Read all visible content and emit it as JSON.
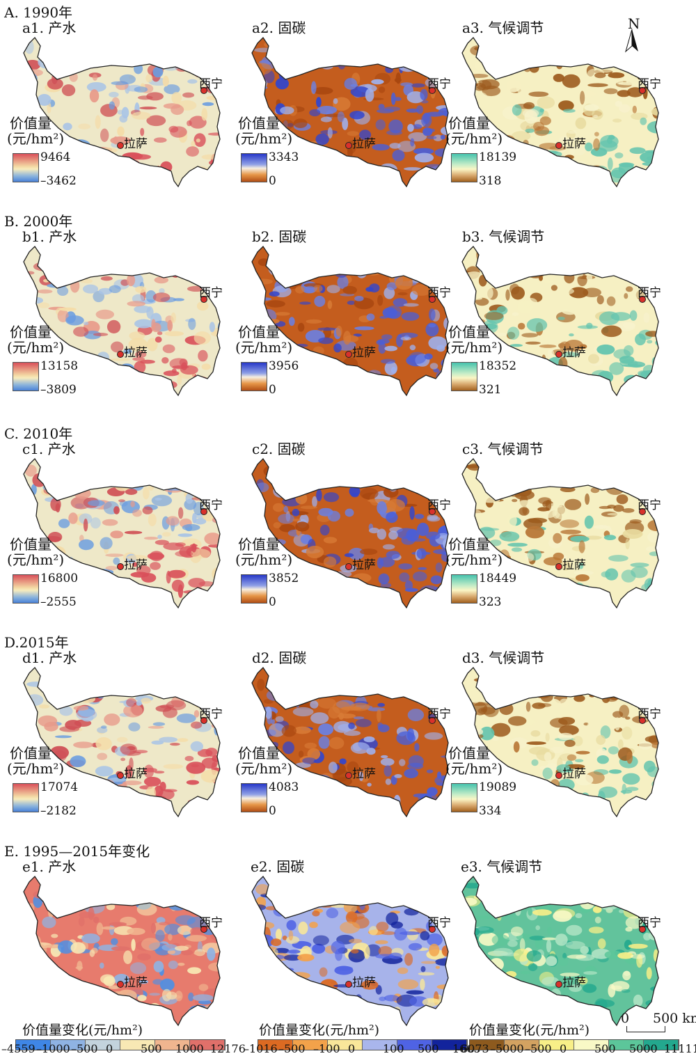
{
  "cities": {
    "xining": "西宁",
    "lhasa": "拉萨"
  },
  "north_arrow": "N",
  "scale_bar": {
    "zero": "0",
    "distance": "500 km"
  },
  "legend_title": "价值量",
  "legend_unit": "(元/hm²)",
  "rows": [
    {
      "title": "A. 1990年",
      "panels": [
        {
          "label": "a1. 产水",
          "max": "9464",
          "min": "–3462"
        },
        {
          "label": "a2. 固碳",
          "max": "3343",
          "min": "0"
        },
        {
          "label": "a3. 气候调节",
          "max": "18139",
          "min": "318"
        }
      ]
    },
    {
      "title": "B. 2000年",
      "panels": [
        {
          "label": "b1. 产水",
          "max": "13158",
          "min": "–3809"
        },
        {
          "label": "b2. 固碳",
          "max": "3956",
          "min": "0"
        },
        {
          "label": "b3. 气候调节",
          "max": "18352",
          "min": "321"
        }
      ]
    },
    {
      "title": "C. 2010年",
      "panels": [
        {
          "label": "c1. 产水",
          "max": "16800",
          "min": "–2555"
        },
        {
          "label": "c2. 固碳",
          "max": "3852",
          "min": "0"
        },
        {
          "label": "c3. 气候调节",
          "max": "18449",
          "min": "323"
        }
      ]
    },
    {
      "title": "D.2015年",
      "panels": [
        {
          "label": "d1. 产水",
          "max": "17074",
          "min": "–2182"
        },
        {
          "label": "d2. 固碳",
          "max": "4083",
          "min": "0"
        },
        {
          "label": "d3. 气候调节",
          "max": "19089",
          "min": "334"
        }
      ]
    }
  ],
  "change_row": {
    "title": "E. 1995—2015年变化",
    "legend_label": "价值量变化(元/hm²)",
    "panels": [
      {
        "label": "e1. 产水",
        "ticks": [
          "–4559",
          "–1000",
          "–500",
          "0",
          "500",
          "1000",
          "12176"
        ],
        "colors": [
          "#3f86e6",
          "#8fb3e3",
          "#c3d3dd",
          "#f8e8b4",
          "#f0b58f",
          "#e0706a"
        ]
      },
      {
        "label": "e2. 固碳",
        "ticks": [
          "–1016",
          "–500",
          "–100",
          "0",
          "100",
          "500",
          "1665"
        ],
        "colors": [
          "#dc6a22",
          "#f3a24a",
          "#f9e79a",
          "#a9b6ec",
          "#4f63e4",
          "#12239c"
        ]
      },
      {
        "label": "e3. 气候调节",
        "ticks": [
          "–6073",
          "–5000",
          "–500",
          "0",
          "500",
          "5000",
          "11111"
        ],
        "colors": [
          "#8d5a1e",
          "#d3a261",
          "#f8ef88",
          "#f9f9c6",
          "#5cc69a",
          "#23a88e"
        ]
      }
    ]
  }
}
